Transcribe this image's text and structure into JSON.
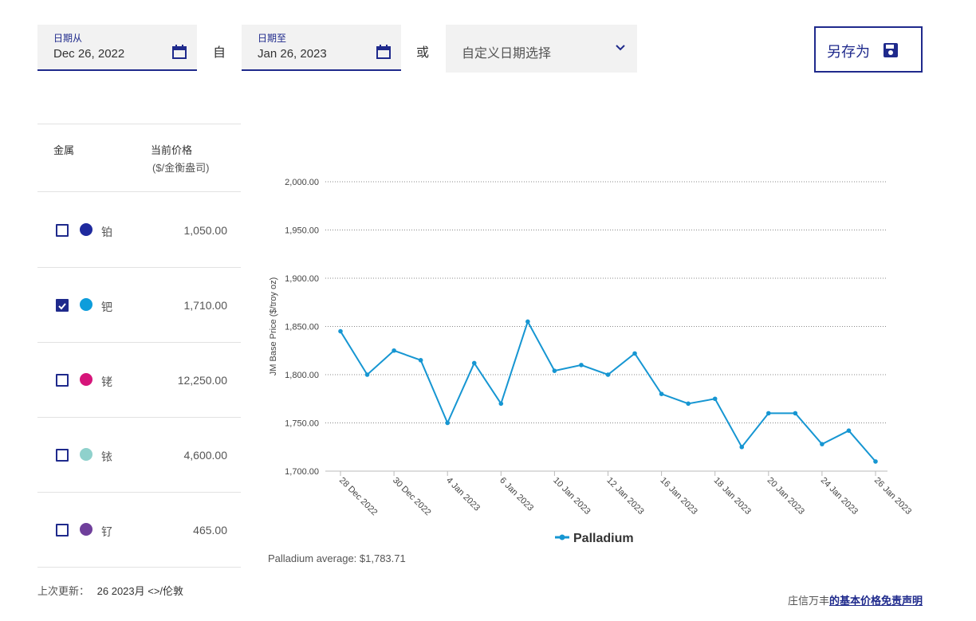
{
  "date_from": {
    "label": "日期从",
    "value": "Dec 26, 2022"
  },
  "between_text": "自",
  "date_to": {
    "label": "日期至",
    "value": "Jan 26, 2023"
  },
  "or_text": "或",
  "custom_select": {
    "value": "自定义日期选择"
  },
  "save_as": {
    "label": "另存为"
  },
  "table": {
    "metal_header": "金属",
    "price_header": "当前价格",
    "price_unit": "($/金衡盎司)",
    "rows": [
      {
        "name": "铂",
        "price": "1,050.00",
        "checked": false,
        "color": "#1f2a9e"
      },
      {
        "name": "钯",
        "price": "1,710.00",
        "checked": true,
        "color": "#0d9ddb"
      },
      {
        "name": "铑",
        "price": "12,250.00",
        "checked": false,
        "color": "#d6157a"
      },
      {
        "name": "铱",
        "price": "4,600.00",
        "checked": false,
        "color": "#8fd1cc"
      },
      {
        "name": "钌",
        "price": "465.00",
        "checked": false,
        "color": "#6f3f9b"
      }
    ]
  },
  "last_updated": {
    "label": "上次更新：",
    "value": "26 2023月 <>/伦敦"
  },
  "average_text": "Palladium average: $1,783.71",
  "disclaimer": {
    "prefix": "庄信万丰",
    "link": "的基本价格免责声明"
  },
  "chart_data": {
    "type": "line",
    "ylabel": "JM Base Price ($/troy oz)",
    "ylim": [
      1700,
      2000
    ],
    "yticks": [
      "1,700.00",
      "1,750.00",
      "1,800.00",
      "1,850.00",
      "1,900.00",
      "1,950.00",
      "2,000.00"
    ],
    "xticks": [
      "28 Dec 2022",
      "30 Dec 2022",
      "4 Jan 2023",
      "6 Jan 2023",
      "10 Jan 2023",
      "12 Jan 2023",
      "16 Jan 2023",
      "18 Jan 2023",
      "20 Jan 2023",
      "24 Jan 2023",
      "26 Jan 2023"
    ],
    "xtick_positions": [
      0,
      2,
      4,
      6,
      8,
      10,
      12,
      14,
      16,
      18,
      20
    ],
    "grid": true,
    "legend": "bottom",
    "series": [
      {
        "name": "Palladium",
        "color": "#1696d2",
        "values": [
          1845,
          1800,
          1825,
          1815,
          1750,
          1812,
          1770,
          1855,
          1804,
          1810,
          1800,
          1822,
          1780,
          1770,
          1775,
          1725,
          1760,
          1760,
          1728,
          1742,
          1710
        ]
      }
    ]
  }
}
